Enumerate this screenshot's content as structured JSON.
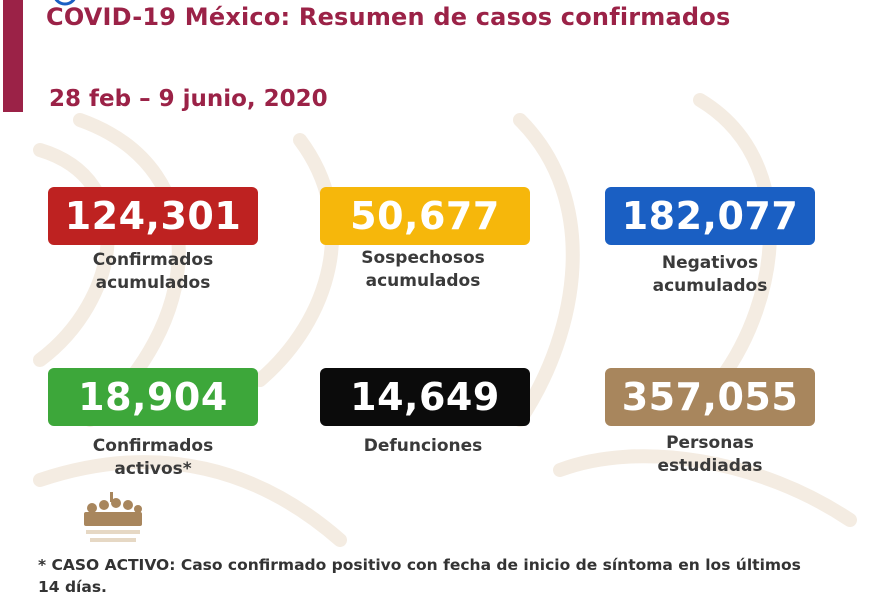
{
  "header": {
    "title": "COVID-19 México: Resumen de casos confirmados",
    "date_range": "28 feb – 9 junio, 2020"
  },
  "colors": {
    "accent": "#9b2247",
    "confirmed": "#be2221",
    "suspected": "#f6b70b",
    "negative": "#1a5fc3",
    "active": "#3da73a",
    "deaths": "#0b0b0b",
    "studied": "#a8865d"
  },
  "stats": [
    {
      "id": "confirmados-acumulados",
      "value": "124,301",
      "label": "Confirmados\nacumulados"
    },
    {
      "id": "sospechosos-acumulados",
      "value": "50,677",
      "label": "Sospechosos\nacumulados"
    },
    {
      "id": "negativos-acumulados",
      "value": "182,077",
      "label": "Negativos\nacumulados"
    },
    {
      "id": "confirmados-activos",
      "value": "18,904",
      "label": "Confirmados\nactivos*"
    },
    {
      "id": "defunciones",
      "value": "14,649",
      "label": "Defunciones"
    },
    {
      "id": "personas-estudiadas",
      "value": "357,055",
      "label": "Personas\nestudiadas"
    }
  ],
  "footnote": "* CASO ACTIVO: Caso confirmado positivo con fecha de inicio de síntoma en los últimos 14 días.",
  "icons": {
    "logo": "government-logo-icon",
    "corner": "blue-circle-icon",
    "watermark": "eagle-watermark"
  }
}
